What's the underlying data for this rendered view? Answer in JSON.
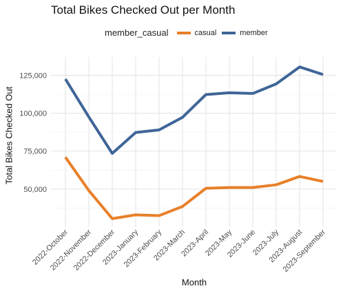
{
  "chart_data": {
    "type": "line",
    "title": "Total Bikes Checked Out per Month",
    "xlabel": "Month",
    "ylabel": "Total Bikes Checked Out",
    "legend_title": "member_casual",
    "legend_position": "top",
    "grid": true,
    "categories": [
      "2022-October",
      "2022-November",
      "2022-December",
      "2023-January",
      "2023-February",
      "2023-March",
      "2023-April",
      "2023-May",
      "2023-June",
      "2023-July",
      "2023-August",
      "2023-September"
    ],
    "ylim": [
      25000,
      137000
    ],
    "yticks": [
      50000,
      75000,
      100000,
      125000
    ],
    "ytick_labels": [
      "50,000",
      "75,000",
      "100,000",
      "125,000"
    ],
    "series": [
      {
        "name": "casual",
        "color": "#E8802A",
        "values": [
          71000,
          49000,
          30500,
          33000,
          32500,
          38500,
          50500,
          51000,
          51000,
          52800,
          58300,
          55000
        ]
      },
      {
        "name": "member",
        "color": "#3F6598",
        "values": [
          122500,
          97500,
          73500,
          87300,
          89000,
          97300,
          112300,
          113500,
          113000,
          119300,
          130500,
          125500
        ]
      }
    ]
  }
}
